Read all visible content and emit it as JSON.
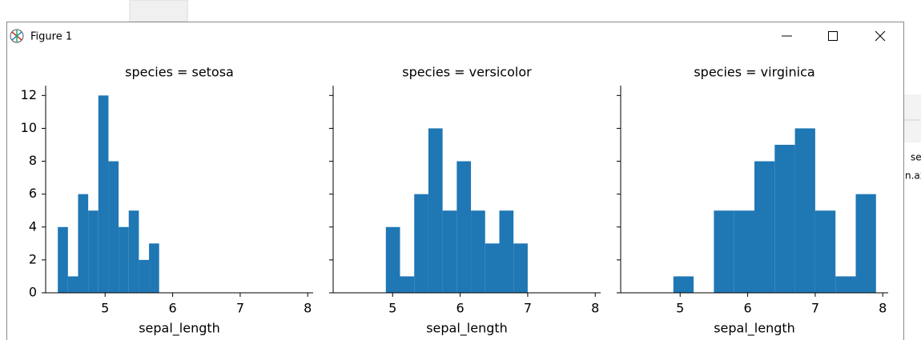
{
  "window": {
    "title": "Figure 1"
  },
  "background_text": [
    "se",
    "n.ax"
  ],
  "chart_data": [
    {
      "type": "histogram",
      "title": "species = setosa",
      "xlabel": "sepal_length",
      "color": "#1f77b4",
      "bins": [
        4.3,
        4.45,
        4.6,
        4.75,
        4.9,
        5.05,
        5.2,
        5.35,
        5.5,
        5.65,
        5.8
      ],
      "values": [
        4,
        1,
        6,
        5,
        12,
        8,
        4,
        5,
        2,
        3
      ],
      "xlim": [
        4.12,
        8.08
      ],
      "xticks": [
        5,
        6,
        7,
        8
      ],
      "ylim": [
        0,
        12.6
      ],
      "yticks": [
        0,
        2,
        4,
        6,
        8,
        10,
        12
      ],
      "ytick_labels": true
    },
    {
      "type": "histogram",
      "title": "species = versicolor",
      "xlabel": "sepal_length",
      "color": "#1f77b4",
      "bins": [
        4.9,
        5.11,
        5.32,
        5.53,
        5.74,
        5.95,
        6.16,
        6.37,
        6.58,
        6.79,
        7.0
      ],
      "values": [
        4,
        1,
        6,
        10,
        5,
        8,
        5,
        3,
        5,
        3
      ],
      "xlim": [
        4.12,
        8.08
      ],
      "xticks": [
        5,
        6,
        7,
        8
      ],
      "ylim": [
        0,
        12.6
      ],
      "yticks": [
        0,
        2,
        4,
        6,
        8,
        10,
        12
      ],
      "ytick_labels": false
    },
    {
      "type": "histogram",
      "title": "species = virginica",
      "xlabel": "sepal_length",
      "color": "#1f77b4",
      "bins": [
        4.9,
        5.2,
        5.5,
        5.8,
        6.1,
        6.4,
        6.7,
        7.0,
        7.3,
        7.6,
        7.9
      ],
      "values": [
        1,
        0,
        5,
        5,
        8,
        9,
        10,
        5,
        1,
        6
      ],
      "xlim": [
        4.12,
        8.08
      ],
      "xticks": [
        5,
        6,
        7,
        8
      ],
      "ylim": [
        0,
        12.6
      ],
      "yticks": [
        0,
        2,
        4,
        6,
        8,
        10,
        12
      ],
      "ytick_labels": false
    }
  ]
}
